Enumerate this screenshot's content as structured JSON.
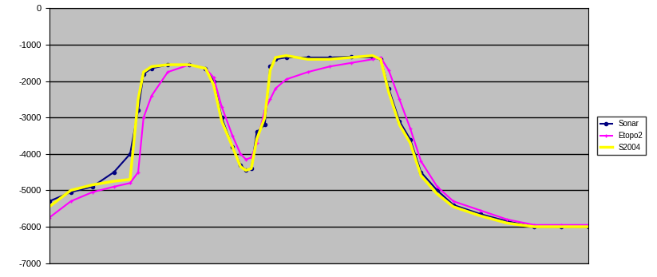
{
  "chart_data": {
    "type": "line",
    "x": [
      0,
      4,
      8,
      12,
      15,
      16.5,
      17.5,
      19,
      22,
      26,
      29,
      30.5,
      32,
      34,
      35.5,
      36.5,
      37.5,
      38.5,
      40,
      41,
      42,
      44,
      48,
      52,
      56,
      60,
      61.5,
      63,
      65,
      67,
      69,
      72,
      75,
      80,
      85,
      90,
      95,
      100
    ],
    "series": [
      {
        "name": "Sonar",
        "color": "#000080",
        "marker": "circle",
        "line_style": "solid",
        "values": [
          -5300,
          -5050,
          -4900,
          -4500,
          -4000,
          -2800,
          -1800,
          -1650,
          -1550,
          -1550,
          -1650,
          -2000,
          -3000,
          -3800,
          -4300,
          -4450,
          -4400,
          -3400,
          -3200,
          -1600,
          -1400,
          -1350,
          -1350,
          -1350,
          -1330,
          -1350,
          -1400,
          -2200,
          -3100,
          -3600,
          -4500,
          -5000,
          -5400,
          -5650,
          -5850,
          -6000,
          -6000,
          -6000
        ]
      },
      {
        "name": "Etopo2",
        "color": "#ff00ff",
        "marker": "plus",
        "line_style": "solid",
        "values": [
          -5750,
          -5300,
          -5050,
          -4900,
          -4800,
          -4500,
          -3000,
          -2400,
          -1750,
          -1550,
          -1650,
          -1900,
          -2700,
          -3500,
          -4000,
          -4150,
          -4100,
          -3700,
          -2800,
          -2500,
          -2200,
          -1950,
          -1750,
          -1600,
          -1500,
          -1400,
          -1350,
          -1700,
          -2500,
          -3300,
          -4200,
          -4900,
          -5300,
          -5550,
          -5800,
          -5950,
          -5950,
          -5950
        ]
      },
      {
        "name": "S2004",
        "color": "#ffff00",
        "marker": "none",
        "line_style": "solid",
        "values": [
          -5450,
          -5000,
          -4850,
          -4750,
          -4700,
          -2500,
          -1750,
          -1600,
          -1550,
          -1550,
          -1650,
          -2100,
          -3100,
          -3800,
          -4350,
          -4450,
          -4400,
          -3600,
          -3000,
          -1700,
          -1350,
          -1300,
          -1400,
          -1400,
          -1350,
          -1300,
          -1400,
          -2300,
          -3200,
          -3700,
          -4600,
          -5100,
          -5450,
          -5700,
          -5900,
          -6000,
          -6000,
          -6000
        ]
      }
    ],
    "xlim": [
      0,
      100
    ],
    "xticks": [],
    "ylim": [
      -7000,
      0
    ],
    "yticks": [
      -7000,
      -6000,
      -5000,
      -4000,
      -3000,
      -2000,
      -1000,
      0
    ],
    "grid": true,
    "legend": "right",
    "tick_labels": "y"
  }
}
